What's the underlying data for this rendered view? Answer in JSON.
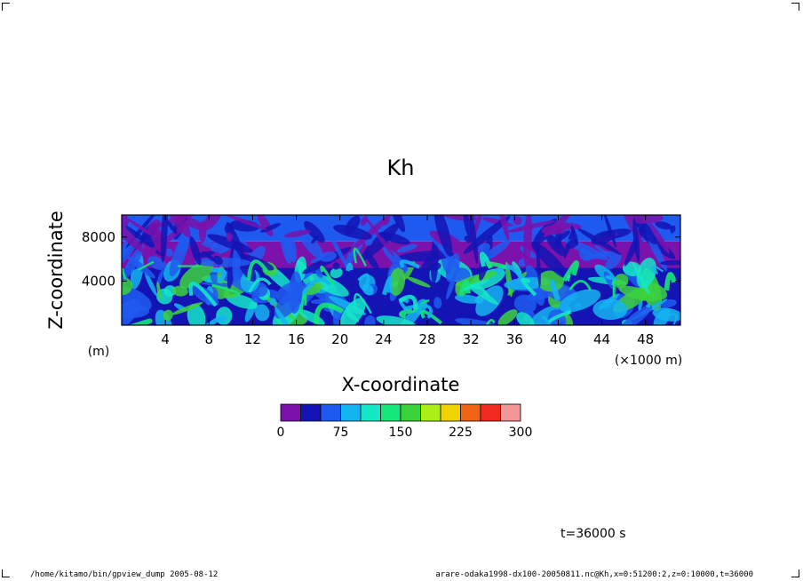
{
  "chart_data": {
    "type": "heatmap",
    "title": "Kh",
    "xlabel": "X-coordinate",
    "ylabel": "Z-coordinate",
    "x_unit": "(×1000 m)",
    "y_unit": "(m)",
    "xlim": [
      0,
      51.2
    ],
    "ylim": [
      0,
      10000
    ],
    "x_ticks": [
      "4",
      "8",
      "12",
      "16",
      "20",
      "24",
      "28",
      "32",
      "36",
      "40",
      "44",
      "48"
    ],
    "y_ticks": [
      "4000",
      "8000"
    ],
    "x_tick_values": [
      4,
      8,
      12,
      16,
      20,
      24,
      28,
      32,
      36,
      40,
      44,
      48
    ],
    "y_tick_values": [
      4000,
      8000
    ],
    "colorbar": {
      "ticks": [
        "0",
        "75",
        "150",
        "225",
        "300"
      ],
      "tick_values": [
        0,
        75,
        150,
        225,
        300
      ],
      "levels": [
        0,
        25,
        50,
        75,
        100,
        125,
        150,
        175,
        200,
        225,
        250,
        275,
        300
      ],
      "colors": [
        "#7a12ab",
        "#1414b4",
        "#1e5af0",
        "#14b4f0",
        "#14e6c8",
        "#14e678",
        "#3cd23c",
        "#aaf014",
        "#f0d200",
        "#f06414",
        "#f0281e",
        "#f09696"
      ]
    },
    "field_layers": [
      {
        "z_range": [
          0,
          5200
        ],
        "dominant": "#1414b4",
        "secondary": [
          "#1e5af0",
          "#14b4f0",
          "#14e6c8",
          "#3cd23c"
        ]
      },
      {
        "z_range": [
          5200,
          7600
        ],
        "dominant": "#7a12ab",
        "secondary": [
          "#1e5af0",
          "#1414b4"
        ]
      },
      {
        "z_range": [
          7600,
          10000
        ],
        "dominant": "#1e5af0",
        "secondary": [
          "#7a12ab",
          "#1414b4"
        ]
      }
    ]
  },
  "annotation": {
    "time": "t=36000 s"
  },
  "footer": {
    "left": "/home/kitamo/bin/gpview_dump  2005-08-12",
    "right": "arare-odaka1998-dx100-20050811.nc@Kh,x=0:51200:2,z=0:10000,t=36000"
  }
}
